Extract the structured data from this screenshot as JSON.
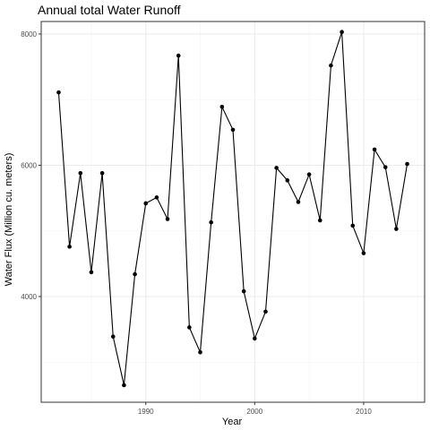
{
  "chart_data": {
    "type": "line",
    "title": "Annual total Water Runoff",
    "xlabel": "Year",
    "ylabel": "Water Flux (Million cu. meters)",
    "xlim": [
      1980.4,
      2015.6
    ],
    "ylim": [
      2390,
      8190
    ],
    "x_ticks": [
      1990,
      2000,
      2010
    ],
    "x_tick_labels": [
      "1990",
      "2000",
      "2010"
    ],
    "y_ticks": [
      4000,
      6000,
      8000
    ],
    "y_tick_labels": [
      "4000",
      "6000",
      "8000"
    ],
    "grid": true,
    "legend": "none",
    "colors": {
      "line": "#000000",
      "point": "#000000",
      "panel_border": "#333333",
      "grid_major": "#ebebeb",
      "grid_minor": "#f5f5f5"
    },
    "x": [
      1982,
      1983,
      1984,
      1985,
      1986,
      1987,
      1988,
      1989,
      1990,
      1991,
      1992,
      1993,
      1994,
      1995,
      1996,
      1997,
      1998,
      1999,
      2000,
      2001,
      2002,
      2003,
      2004,
      2005,
      2006,
      2007,
      2008,
      2009,
      2010,
      2011,
      2012,
      2013,
      2014
    ],
    "y": [
      7110,
      4760,
      5880,
      4370,
      5880,
      3390,
      2650,
      4340,
      5420,
      5510,
      5180,
      7670,
      3530,
      3150,
      5130,
      6890,
      6540,
      4080,
      3360,
      3770,
      5960,
      5770,
      5440,
      5860,
      5160,
      7520,
      8030,
      5080,
      4660,
      6240,
      5970,
      5030,
      6020
    ]
  }
}
